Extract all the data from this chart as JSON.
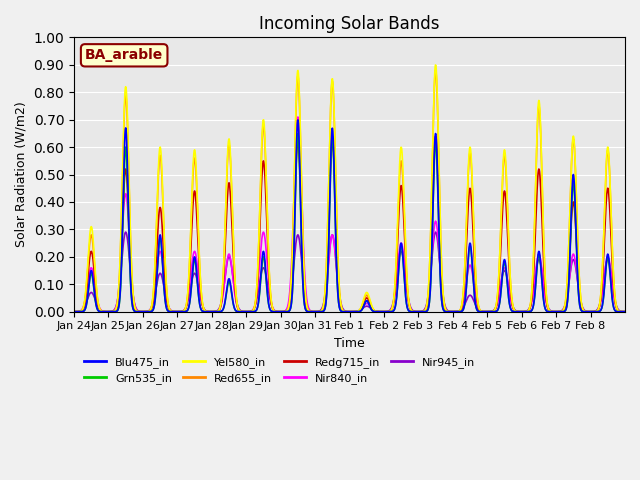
{
  "title": "Incoming Solar Bands",
  "xlabel": "Time",
  "ylabel": "Solar Radiation (W/m2)",
  "ylim": [
    0,
    1.0
  ],
  "yticks": [
    0.0,
    0.1,
    0.2,
    0.3,
    0.4,
    0.5,
    0.6,
    0.7,
    0.8,
    0.9,
    1.0
  ],
  "annotation": "BA_arable",
  "plot_bg": "#e8e8e8",
  "fig_bg": "#f0f0f0",
  "series": {
    "Blu475_in": {
      "color": "#0000ff",
      "lw": 1.2
    },
    "Grn535_in": {
      "color": "#00cc00",
      "lw": 1.2
    },
    "Yel580_in": {
      "color": "#ffff00",
      "lw": 1.2
    },
    "Red655_in": {
      "color": "#ff8800",
      "lw": 1.2
    },
    "Redg715_in": {
      "color": "#cc0000",
      "lw": 1.2
    },
    "Nir840_in": {
      "color": "#ff00ff",
      "lw": 1.2
    },
    "Nir945_in": {
      "color": "#8800cc",
      "lw": 1.2
    }
  },
  "xtick_labels": [
    "Jan 24",
    "Jan 25",
    "Jan 26",
    "Jan 27",
    "Jan 28",
    "Jan 29",
    "Jan 30",
    "Jan 31",
    "Feb 1",
    "Feb 2",
    "Feb 3",
    "Feb 4",
    "Feb 5",
    "Feb 6",
    "Feb 7",
    "Feb 8"
  ],
  "n_days": 16,
  "yel_peaks": [
    0.31,
    0.82,
    0.6,
    0.59,
    0.63,
    0.7,
    0.88,
    0.85,
    0.07,
    0.6,
    0.9,
    0.6,
    0.59,
    0.77,
    0.64,
    0.6
  ],
  "orange_peaks": [
    0.28,
    0.79,
    0.57,
    0.56,
    0.61,
    0.68,
    0.86,
    0.84,
    0.06,
    0.55,
    0.88,
    0.58,
    0.57,
    0.75,
    0.63,
    0.59
  ],
  "red_peaks": [
    0.22,
    0.52,
    0.38,
    0.44,
    0.47,
    0.55,
    0.62,
    0.62,
    0.05,
    0.46,
    0.64,
    0.45,
    0.44,
    0.52,
    0.4,
    0.45
  ],
  "magenta_peaks": [
    0.16,
    0.43,
    0.22,
    0.22,
    0.21,
    0.29,
    0.71,
    0.28,
    0.03,
    0.25,
    0.33,
    0.17,
    0.16,
    0.21,
    0.21,
    0.2
  ],
  "blue_peaks": [
    0.15,
    0.67,
    0.28,
    0.2,
    0.12,
    0.22,
    0.7,
    0.67,
    0.04,
    0.25,
    0.65,
    0.25,
    0.19,
    0.22,
    0.5,
    0.21
  ],
  "green_peaks": [
    0.14,
    0.6,
    0.27,
    0.19,
    0.11,
    0.2,
    0.65,
    0.64,
    0.04,
    0.24,
    0.62,
    0.24,
    0.18,
    0.21,
    0.47,
    0.2
  ],
  "purple_peaks": [
    0.07,
    0.29,
    0.14,
    0.14,
    0.2,
    0.16,
    0.28,
    0.28,
    0.02,
    0.22,
    0.29,
    0.06,
    0.15,
    0.19,
    0.19,
    0.19
  ]
}
